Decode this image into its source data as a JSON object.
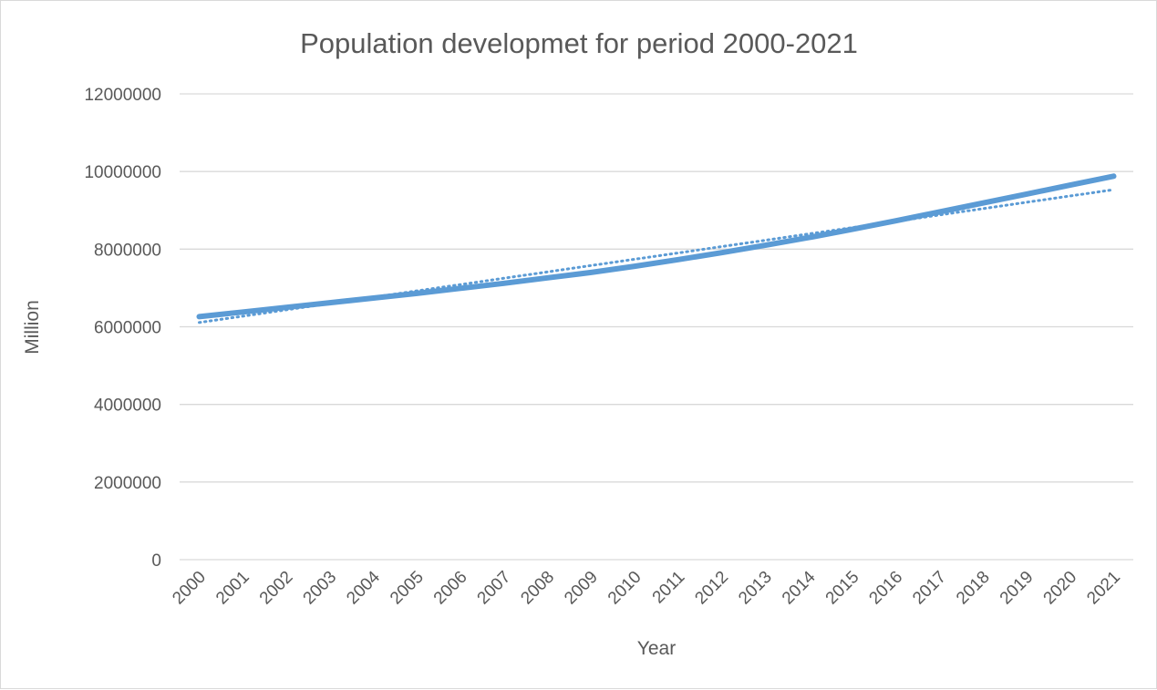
{
  "chart_data": {
    "type": "line",
    "title": "Population developmet for period 2000-2021",
    "xlabel": "Year",
    "ylabel": "Million",
    "ylim": [
      0,
      12000000
    ],
    "yticks": [
      "0",
      "2000000",
      "4000000",
      "6000000",
      "8000000",
      "10000000",
      "12000000"
    ],
    "categories": [
      "2000",
      "2001",
      "2002",
      "2003",
      "2004",
      "2005",
      "2006",
      "2007",
      "2008",
      "2009",
      "2010",
      "2011",
      "2012",
      "2013",
      "2014",
      "2015",
      "2016",
      "2017",
      "2018",
      "2019",
      "2020",
      "2021"
    ],
    "series": [
      {
        "values": [
          6260000,
          6380000,
          6500000,
          6620000,
          6740000,
          6860000,
          6990000,
          7120000,
          7260000,
          7400000,
          7560000,
          7730000,
          7910000,
          8100000,
          8300000,
          8510000,
          8730000,
          8960000,
          9190000,
          9420000,
          9650000,
          9880000
        ],
        "color": "#5b9bd5"
      },
      {
        "trendline": "linear",
        "values": [
          6110000,
          6273000,
          6436000,
          6599000,
          6762000,
          6925000,
          7088000,
          7251000,
          7414000,
          7577000,
          7740000,
          7903000,
          8066000,
          8229000,
          8392000,
          8555000,
          8718000,
          8881000,
          9044000,
          9207000,
          9370000,
          9533000
        ],
        "color": "#5b9bd5"
      }
    ],
    "grid": true,
    "legend": "none"
  }
}
